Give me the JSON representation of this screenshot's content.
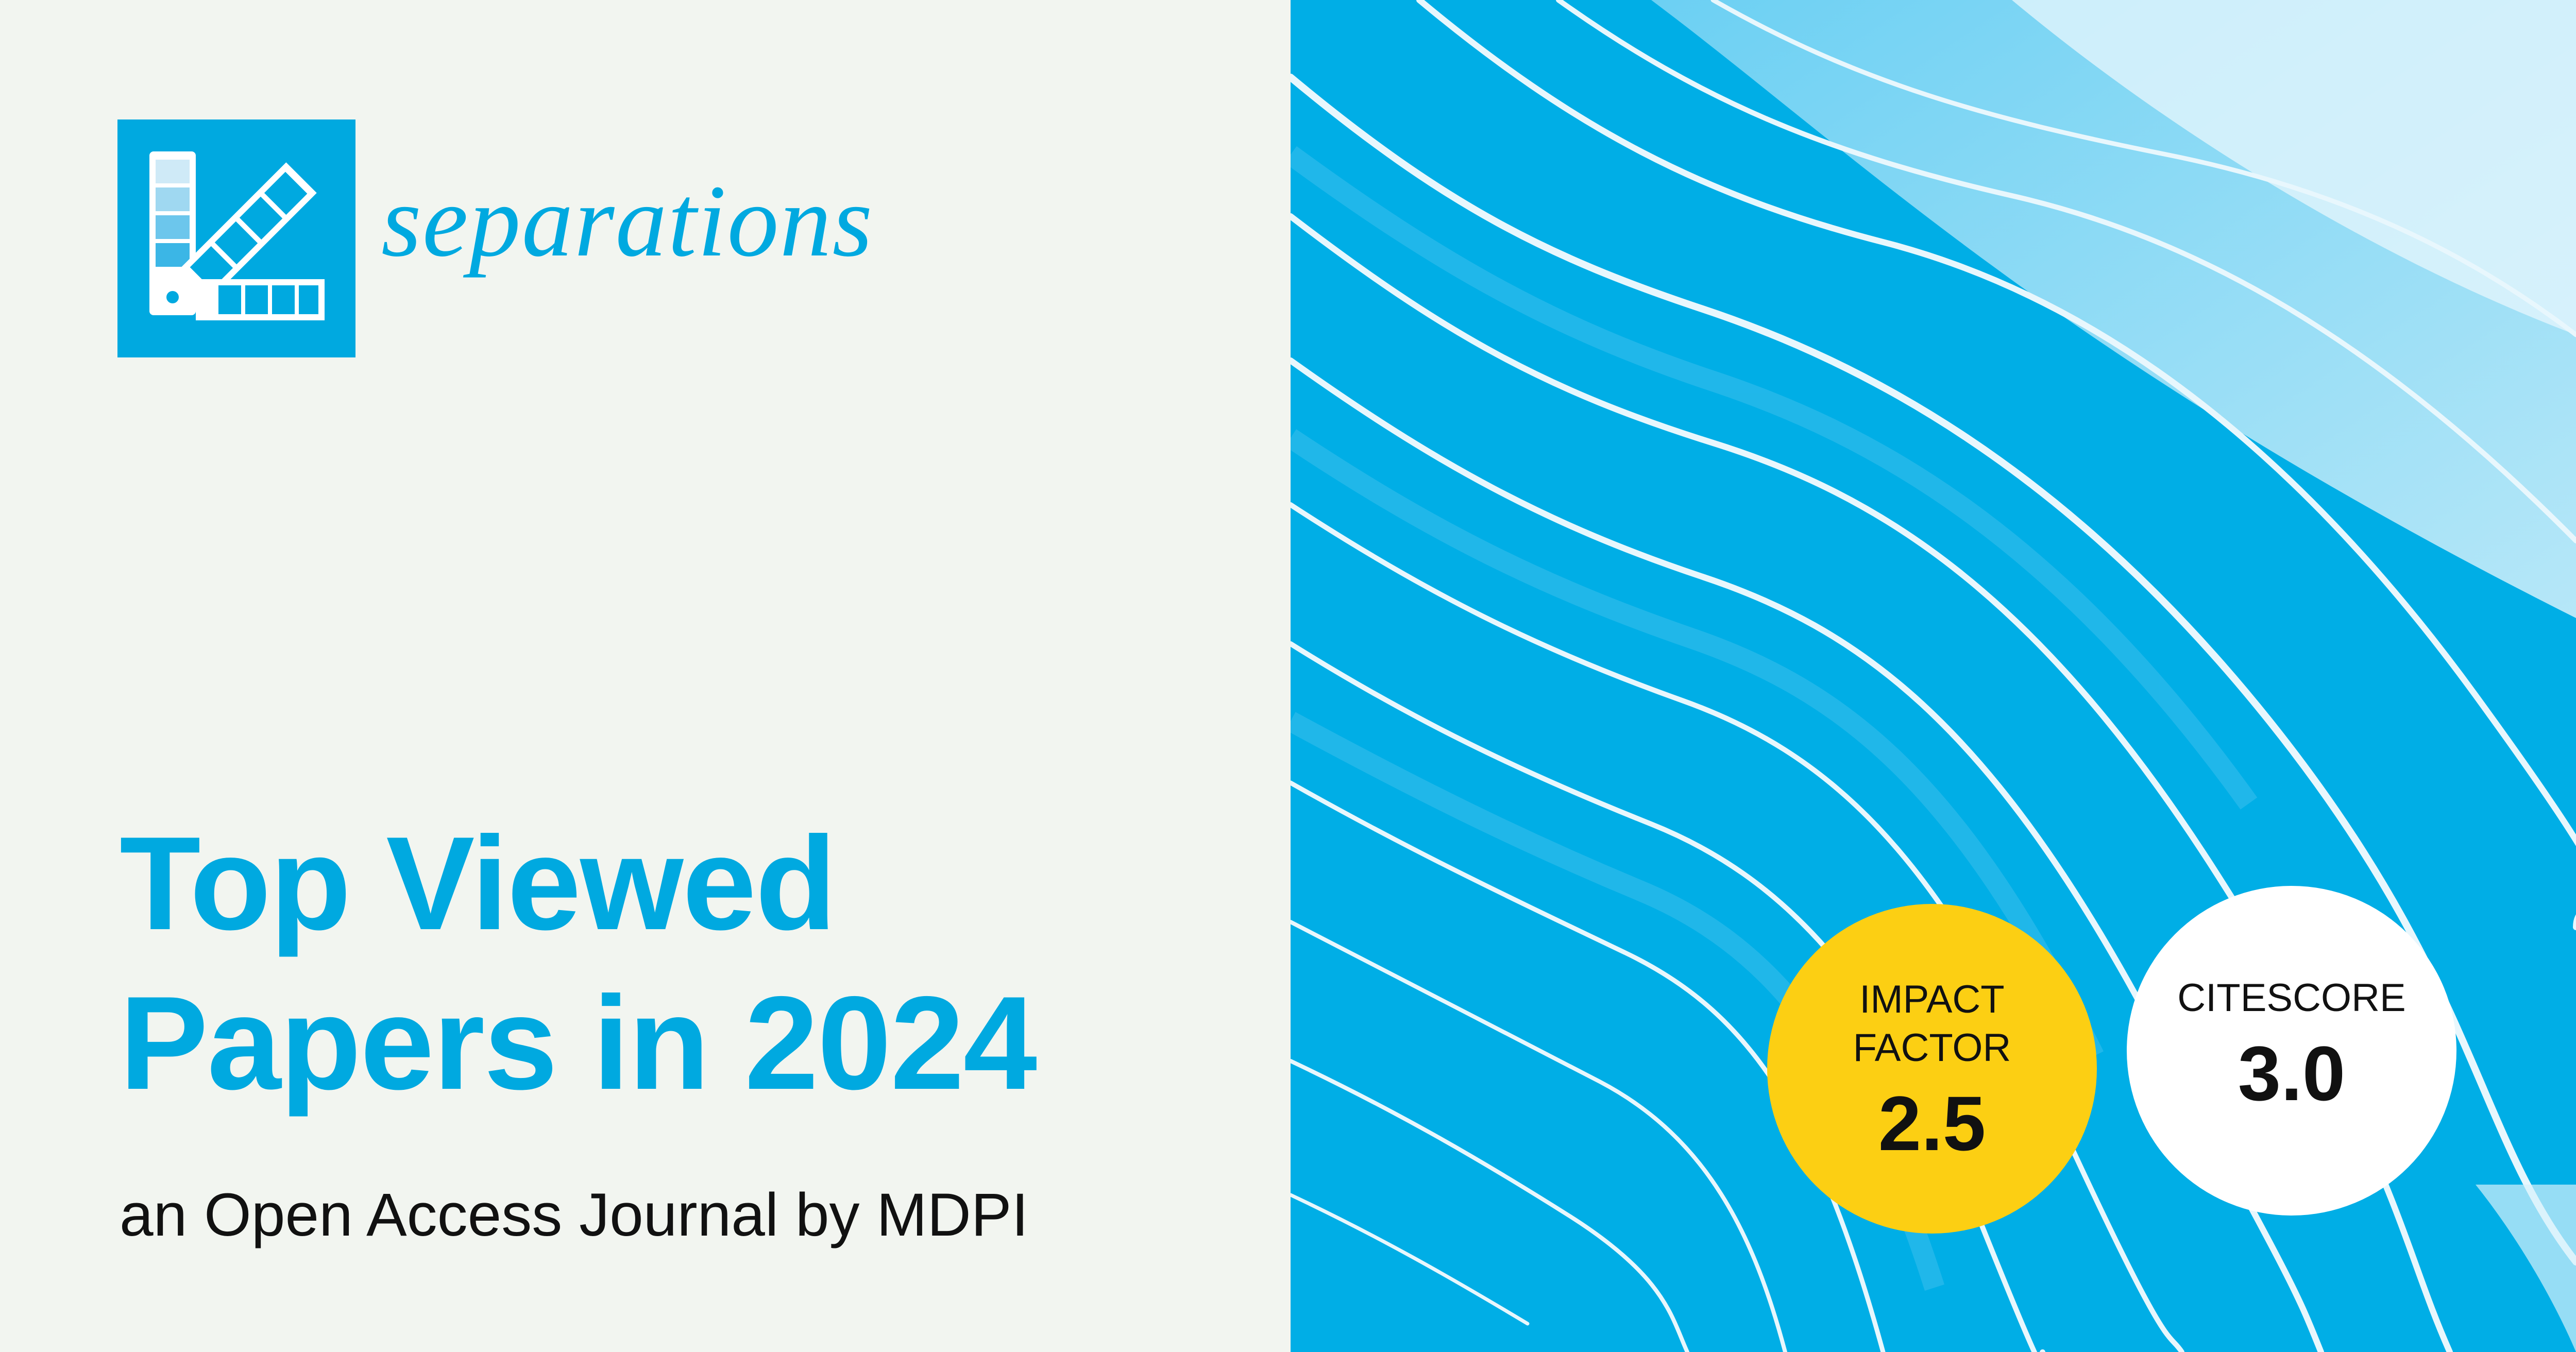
{
  "journal": {
    "name": "separations",
    "logo_icon": "color-swatch-icon",
    "brand_color": "#00a9e0"
  },
  "headline": {
    "line1": "Top Viewed",
    "line2": "Papers in 2024"
  },
  "subtitle": "an Open Access Journal by MDPI",
  "badges": {
    "impact_factor": {
      "label_line1": "IMPACT",
      "label_line2": "FACTOR",
      "value": "2.5",
      "color": "#fccf13"
    },
    "citescore": {
      "label": "CITESCORE",
      "value": "3.0",
      "color": "#ffffff"
    }
  },
  "background": {
    "image": "abstract-blue-waves",
    "color": "#00aee6"
  }
}
